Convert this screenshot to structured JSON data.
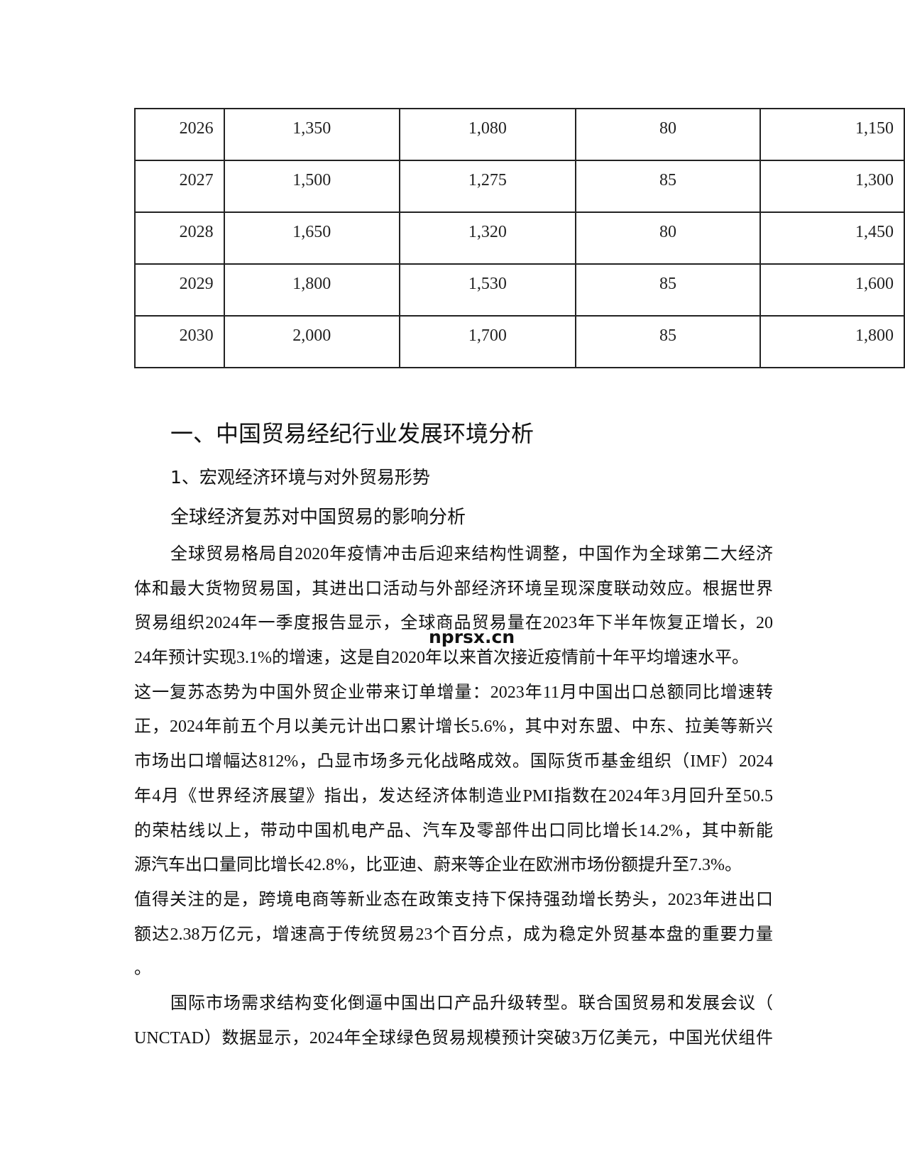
{
  "table": {
    "rows": [
      [
        "2026",
        "1,350",
        "1,080",
        "80",
        "1,150"
      ],
      [
        "2027",
        "1,500",
        "1,275",
        "85",
        "1,300"
      ],
      [
        "2028",
        "1,650",
        "1,320",
        "80",
        "1,450"
      ],
      [
        "2029",
        "1,800",
        "1,530",
        "85",
        "1,600"
      ],
      [
        "2030",
        "2,000",
        "1,700",
        "85",
        "1,800"
      ]
    ]
  },
  "headings": {
    "h1": "一、中国贸易经纪行业发展环境分析",
    "h2": "1、宏观经济环境与对外贸易形势",
    "h3": "全球经济复苏对中国贸易的影响分析"
  },
  "body_lines": [
    "全球贸易格局自2020年疫情冲击后迎来结构性调整，中国作为全球第二大经济",
    "体和最大货物贸易国，其进出口活动与外部经济环境呈现深度联动效应。根据世界",
    "贸易组织2024年一季度报告显示，全球商品贸易量在2023年下半年恢复正增长，20",
    "24年预计实现3.1%的增速，这是自2020年以来首次接近疫情前十年平均增速水平。",
    "这一复苏态势为中国外贸企业带来订单增量：2023年11月中国出口总额同比增速转",
    "正，2024年前五个月以美元计出口累计增长5.6%，其中对东盟、中东、拉美等新兴",
    "市场出口增幅达812%，凸显市场多元化战略成效。国际货币基金组织（IMF）2024",
    "年4月《世界经济展望》指出，发达经济体制造业PMI指数在2024年3月回升至50.5",
    "的荣枯线以上，带动中国机电产品、汽车及零部件出口同比增长14.2%，其中新能",
    "源汽车出口量同比增长42.8%，比亚迪、蔚来等企业在欧洲市场份额提升至7.3%。",
    "值得关注的是，跨境电商等新业态在政策支持下保持强劲增长势头，2023年进出口",
    "额达2.38万亿元，增速高于传统贸易23个百分点，成为稳定外贸基本盘的重要力量",
    "。",
    "国际市场需求结构变化倒逼中国出口产品升级转型。联合国贸易和发展会议（",
    "UNCTAD）数据显示，2024年全球绿色贸易规模预计突破3万亿美元，中国光伏组件"
  ],
  "watermark": "nprsx.cn"
}
